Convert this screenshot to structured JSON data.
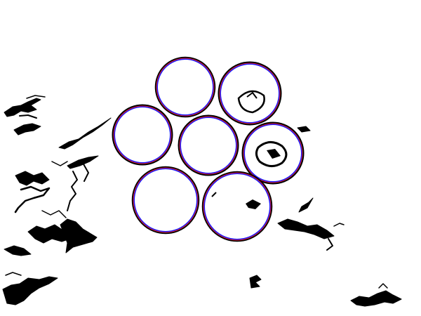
{
  "image": {
    "description_kind": "edge-detection overlay with circle fits",
    "background_color": "#ffffff",
    "edge_color": "#000000",
    "fit_blue_color": "#1a1aff",
    "fit_red_color": "#e0202a"
  },
  "circles": [
    {
      "id": "top-left"
    },
    {
      "id": "top-right"
    },
    {
      "id": "mid-left"
    },
    {
      "id": "center"
    },
    {
      "id": "mid-right"
    },
    {
      "id": "bottom-left"
    },
    {
      "id": "bottom-right"
    }
  ],
  "edge_clusters": [
    {
      "id": "far-left-top"
    },
    {
      "id": "left-diagonal-branch"
    },
    {
      "id": "left-lower-web"
    },
    {
      "id": "bottom-left-corner"
    },
    {
      "id": "right-branch"
    },
    {
      "id": "bottom-center-blob"
    },
    {
      "id": "bottom-right-fragment"
    }
  ]
}
